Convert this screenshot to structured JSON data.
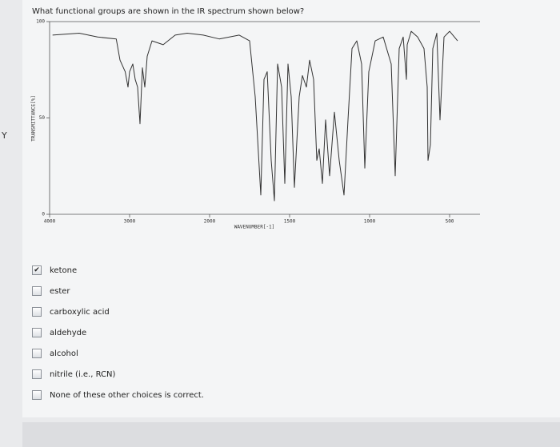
{
  "side_letter": "Y",
  "question": "What functional groups are shown in the IR spectrum shown below?",
  "chart_data": {
    "type": "line",
    "xlabel": "WAVENUMBER[-1]",
    "ylabel": "TRANSMITTANCE[%]",
    "xlim": [
      4000,
      400
    ],
    "xticks": [
      4000,
      3000,
      2000,
      1500,
      1000,
      500
    ],
    "ylim": [
      0,
      100
    ],
    "yticks": [
      100,
      50,
      0
    ],
    "color": "#333333",
    "x": [
      3963,
      3630,
      3400,
      3167,
      3120,
      3055,
      3020,
      3000,
      2960,
      2930,
      2900,
      2870,
      2840,
      2810,
      2780,
      2720,
      2580,
      2430,
      2280,
      2080,
      1940,
      1815,
      1750,
      1715,
      1680,
      1660,
      1640,
      1615,
      1595,
      1575,
      1550,
      1530,
      1510,
      1490,
      1470,
      1440,
      1420,
      1395,
      1375,
      1350,
      1330,
      1315,
      1295,
      1275,
      1250,
      1220,
      1190,
      1160,
      1135,
      1110,
      1080,
      1050,
      1030,
      1005,
      965,
      915,
      865,
      840,
      815,
      790,
      770,
      765,
      740,
      700,
      660,
      640,
      635,
      620,
      605,
      580,
      560,
      535,
      500,
      450
    ],
    "values": [
      93,
      94,
      92,
      91,
      80,
      74,
      66,
      74,
      78,
      70,
      66,
      47,
      76,
      66,
      82,
      90,
      88,
      93,
      94,
      93,
      91,
      93,
      90,
      61,
      10,
      70,
      74,
      28,
      7,
      78,
      66,
      16,
      78,
      61,
      14,
      61,
      72,
      66,
      80,
      70,
      28,
      34,
      16,
      49,
      20,
      53,
      28,
      10,
      49,
      86,
      90,
      78,
      24,
      74,
      90,
      92,
      78,
      20,
      86,
      92,
      70,
      88,
      95,
      92,
      86,
      66,
      28,
      36,
      86,
      94,
      49,
      92,
      95,
      90
    ]
  },
  "choices": [
    {
      "label": "ketone",
      "checked": true
    },
    {
      "label": "ester",
      "checked": false
    },
    {
      "label": "carboxylic acid",
      "checked": false
    },
    {
      "label": "aldehyde",
      "checked": false
    },
    {
      "label": "alcohol",
      "checked": false
    },
    {
      "label": "nitrile (i.e., RCN)",
      "checked": false
    },
    {
      "label": "None of these other choices is correct.",
      "checked": false
    }
  ]
}
